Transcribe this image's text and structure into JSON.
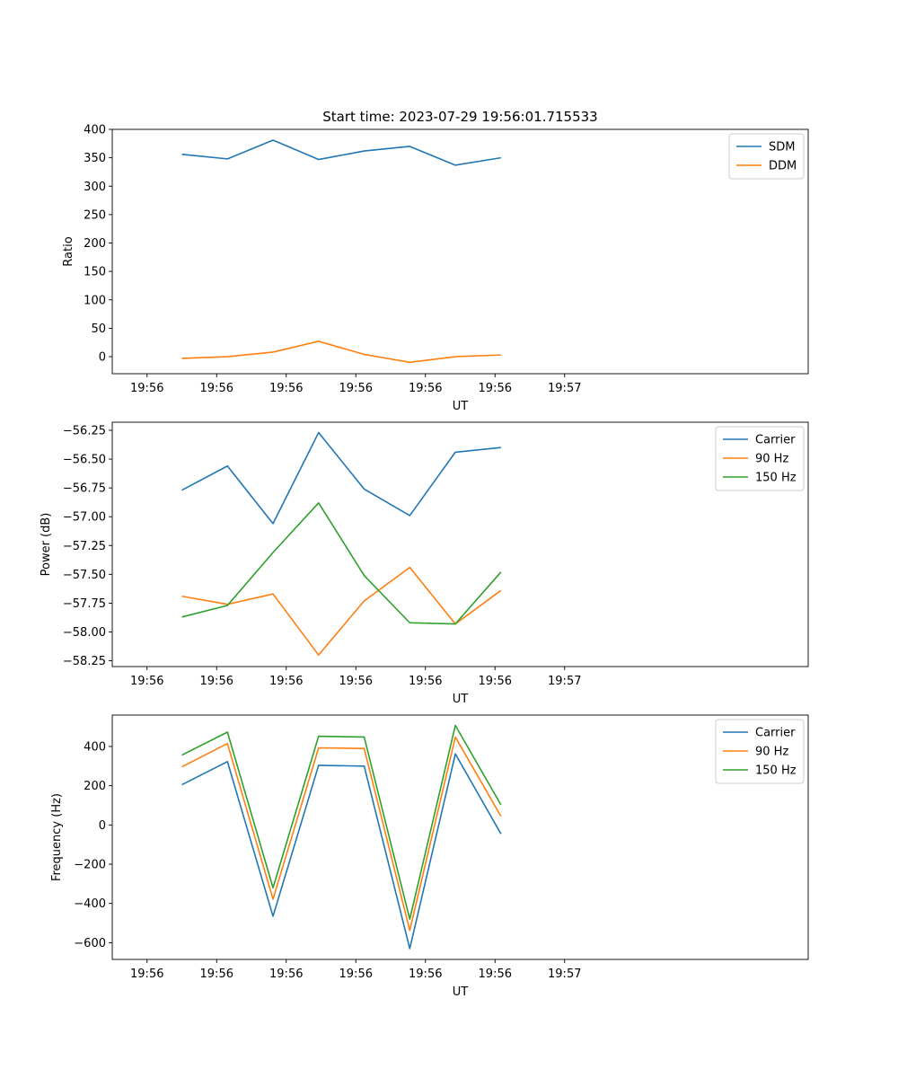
{
  "chart_data": [
    {
      "type": "line",
      "title": "Start time: 2023-07-29 19:56:01.715533",
      "xlabel": "UT",
      "ylabel": "Ratio",
      "xlim": [
        -0.5,
        9.5
      ],
      "ylim": [
        -30,
        400
      ],
      "xticks": [
        0,
        1,
        2,
        3,
        4,
        5,
        6
      ],
      "xtick_labels": [
        "19:56",
        "19:56",
        "19:56",
        "19:56",
        "19:56",
        "19:56",
        "19:57"
      ],
      "yticks": [
        0,
        50,
        100,
        150,
        200,
        250,
        300,
        350,
        400
      ],
      "ytick_labels": [
        "0",
        "50",
        "100",
        "150",
        "200",
        "250",
        "300",
        "350",
        "400"
      ],
      "legend_position": "top-right",
      "x": [
        0.5,
        1.155,
        1.81,
        2.465,
        3.12,
        3.775,
        4.43,
        5.085
      ],
      "series": [
        {
          "name": "SDM",
          "color": "#1f77b4",
          "values": [
            356,
            348,
            381,
            347,
            362,
            370,
            337,
            350
          ]
        },
        {
          "name": "DDM",
          "color": "#ff7f0e",
          "values": [
            -3,
            0,
            8,
            27,
            4,
            -10,
            0,
            3
          ]
        }
      ]
    },
    {
      "type": "line",
      "title": "",
      "xlabel": "UT",
      "ylabel": "Power (dB)",
      "xlim": [
        -0.5,
        9.5
      ],
      "ylim": [
        -58.3,
        -56.18
      ],
      "xticks": [
        0,
        1,
        2,
        3,
        4,
        5,
        6
      ],
      "xtick_labels": [
        "19:56",
        "19:56",
        "19:56",
        "19:56",
        "19:56",
        "19:56",
        "19:57"
      ],
      "yticks": [
        -58.25,
        -58.0,
        -57.75,
        -57.5,
        -57.25,
        -57.0,
        -56.75,
        -56.5,
        -56.25
      ],
      "ytick_labels": [
        "−58.25",
        "−58.00",
        "−57.75",
        "−57.50",
        "−57.25",
        "−57.00",
        "−56.75",
        "−56.50",
        "−56.25"
      ],
      "legend_position": "top-right",
      "x": [
        0.5,
        1.155,
        1.81,
        2.465,
        3.12,
        3.775,
        4.43,
        5.085
      ],
      "series": [
        {
          "name": "Carrier",
          "color": "#1f77b4",
          "values": [
            -56.77,
            -56.56,
            -57.06,
            -56.27,
            -56.76,
            -56.99,
            -56.44,
            -56.4
          ]
        },
        {
          "name": "90 Hz",
          "color": "#ff7f0e",
          "values": [
            -57.69,
            -57.76,
            -57.67,
            -58.2,
            -57.73,
            -57.44,
            -57.93,
            -57.64
          ]
        },
        {
          "name": "150 Hz",
          "color": "#2ca02c",
          "values": [
            -57.87,
            -57.77,
            -57.31,
            -56.88,
            -57.51,
            -57.92,
            -57.93,
            -57.48
          ]
        }
      ]
    },
    {
      "type": "line",
      "title": "",
      "xlabel": "UT",
      "ylabel": "Frequency (Hz)",
      "xlim": [
        -0.5,
        9.5
      ],
      "ylim": [
        -685,
        560
      ],
      "xticks": [
        0,
        1,
        2,
        3,
        4,
        5,
        6
      ],
      "xtick_labels": [
        "19:56",
        "19:56",
        "19:56",
        "19:56",
        "19:56",
        "19:56",
        "19:57"
      ],
      "yticks": [
        -600,
        -400,
        -200,
        0,
        200,
        400
      ],
      "ytick_labels": [
        "−600",
        "−400",
        "−200",
        "0",
        "200",
        "400"
      ],
      "legend_position": "top-right",
      "x": [
        0.5,
        1.155,
        1.81,
        2.465,
        3.12,
        3.775,
        4.43,
        5.085
      ],
      "series": [
        {
          "name": "Carrier",
          "color": "#1f77b4",
          "values": [
            205,
            323,
            -465,
            304,
            300,
            -630,
            362,
            -45
          ]
        },
        {
          "name": "90 Hz",
          "color": "#ff7f0e",
          "values": [
            296,
            415,
            -378,
            393,
            390,
            -537,
            448,
            44
          ]
        },
        {
          "name": "150 Hz",
          "color": "#2ca02c",
          "values": [
            356,
            473,
            -320,
            452,
            448,
            -480,
            507,
            103
          ]
        }
      ]
    }
  ]
}
